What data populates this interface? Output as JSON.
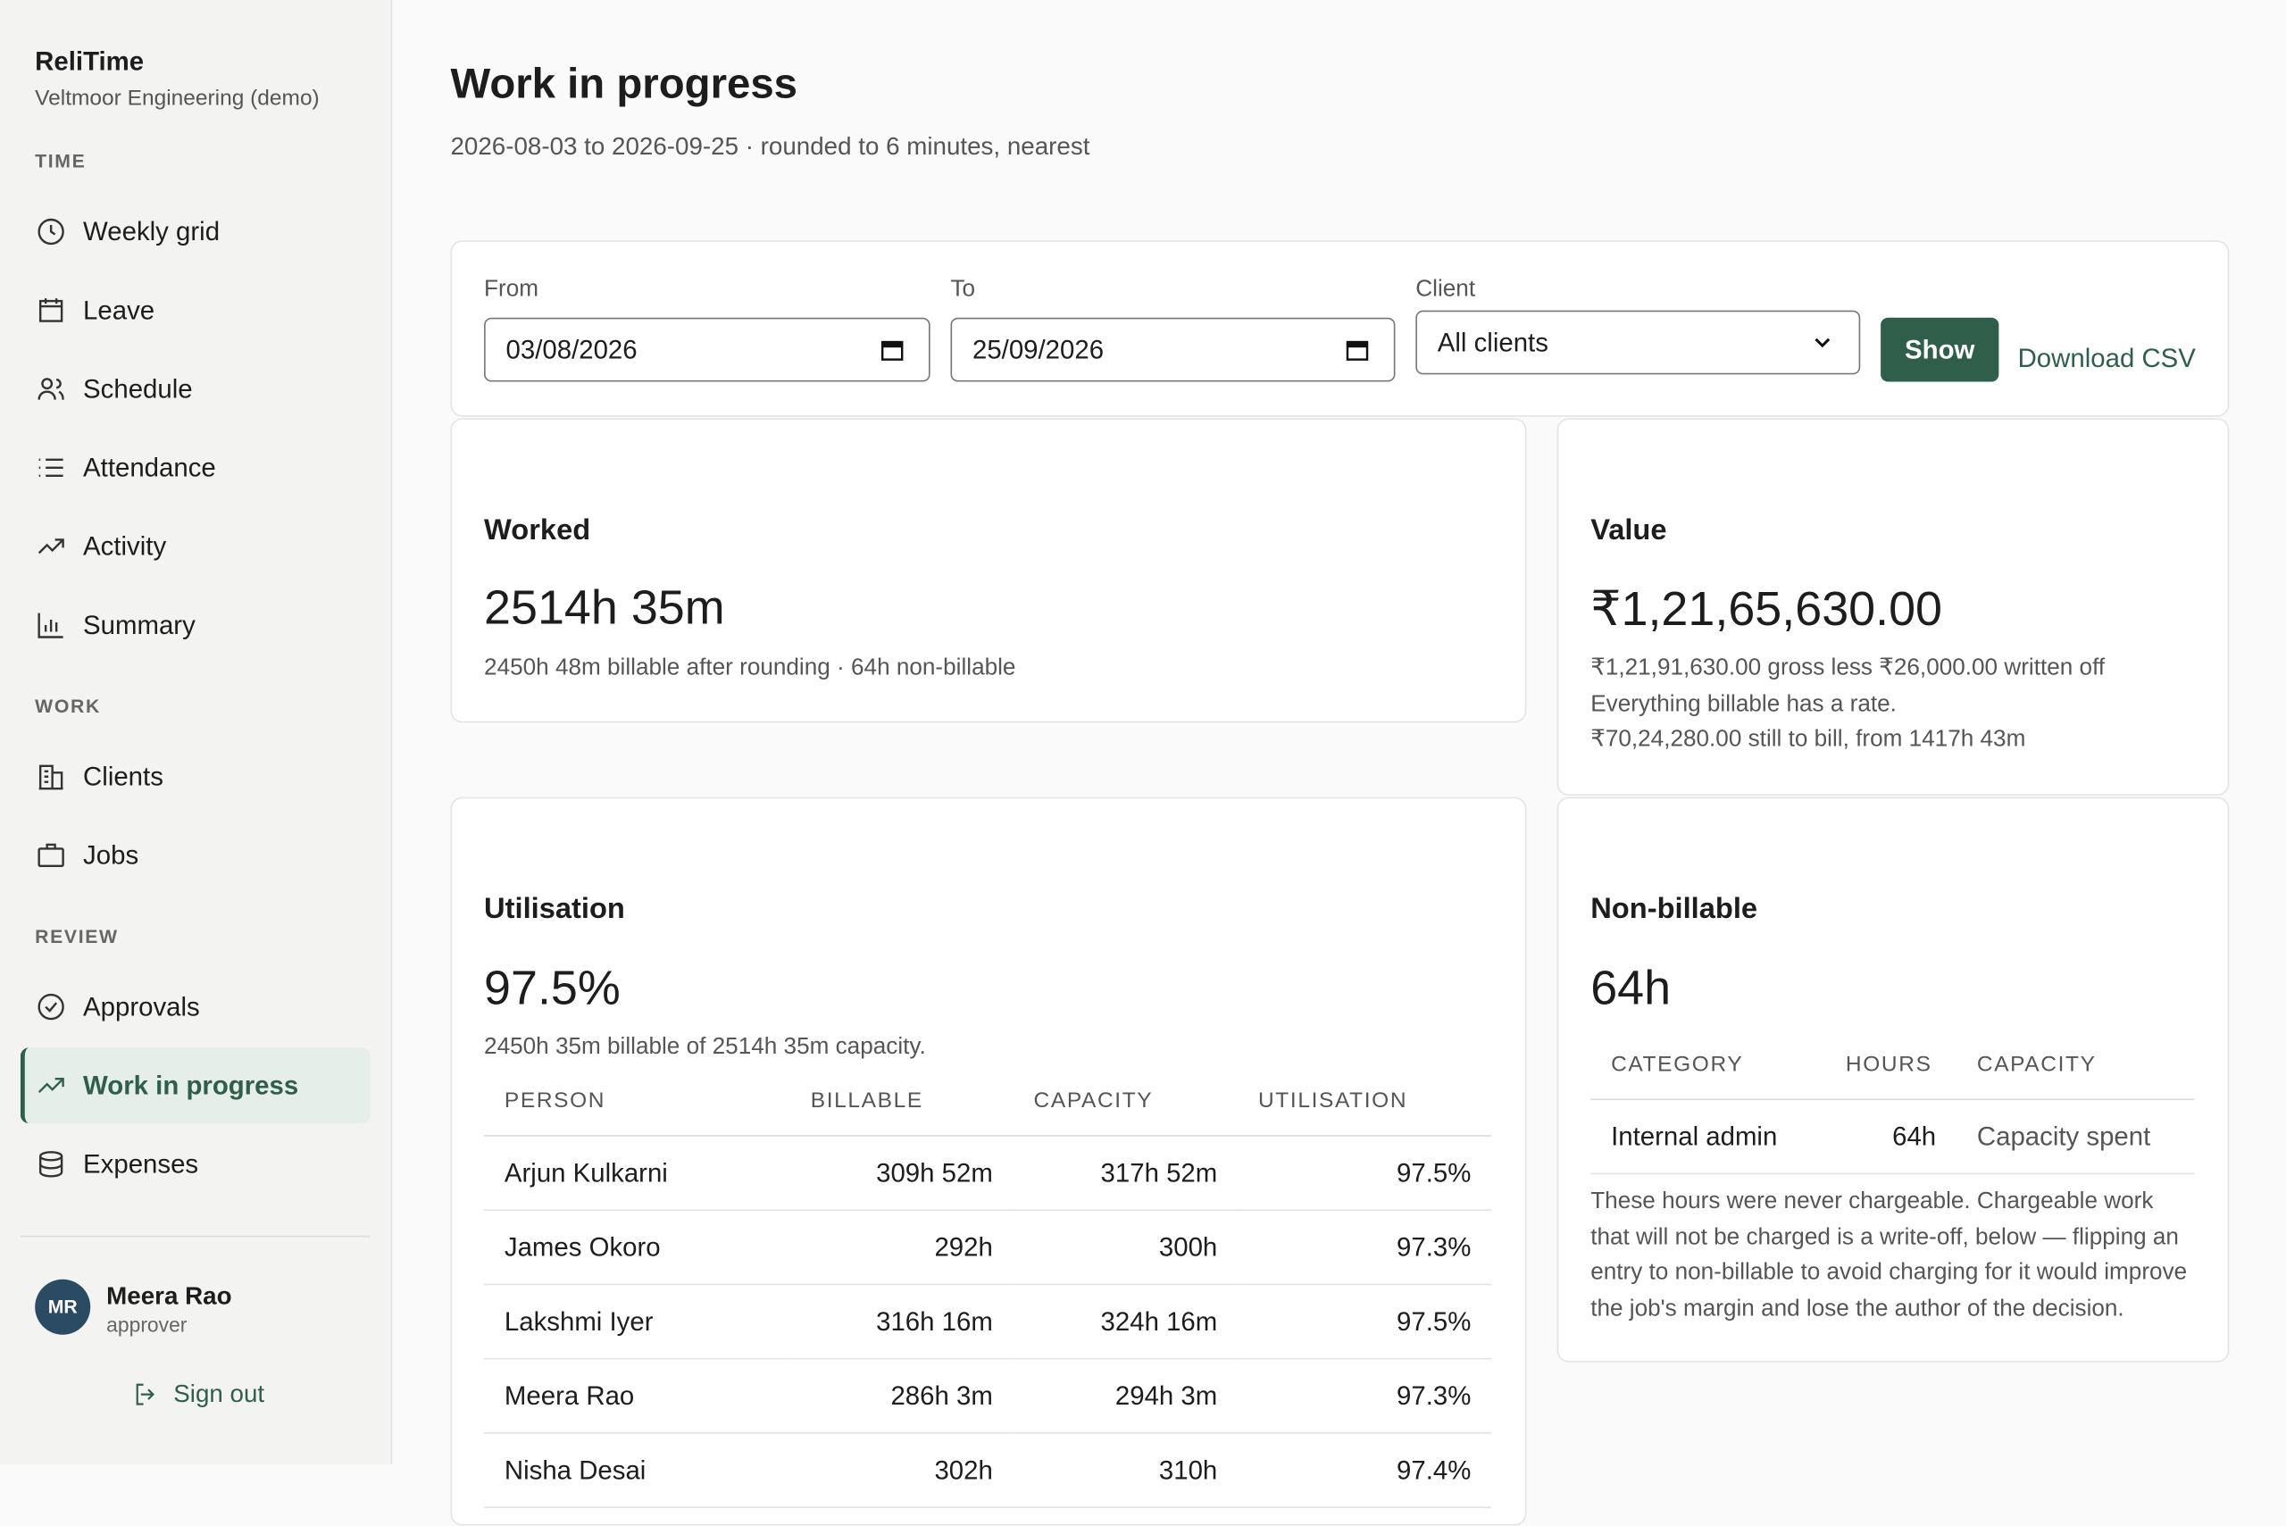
{
  "app": {
    "name": "ReliTime",
    "org": "Veltmoor Engineering (demo)"
  },
  "nav": [
    {
      "section": "TIME",
      "items": [
        "Weekly grid",
        "Leave",
        "Schedule",
        "Attendance",
        "Activity",
        "Summary"
      ]
    },
    {
      "section": "WORK",
      "items": [
        "Clients",
        "Jobs"
      ]
    },
    {
      "section": "REVIEW",
      "items": [
        "Approvals",
        "Work in progress",
        "Expenses"
      ]
    }
  ],
  "user": {
    "initials": "MR",
    "name": "Meera Rao",
    "role": "approver",
    "sign_out": "Sign out"
  },
  "header": {
    "title": "Work in progress",
    "subtitle": "2026-08-03 to 2026-09-25 · rounded to 6 minutes, nearest"
  },
  "filters": {
    "from_label": "From",
    "from": "03/08/2026",
    "to_label": "To",
    "to": "25/09/2026",
    "client_label": "Client",
    "client": "All clients",
    "show": "Show",
    "download": "Download CSV"
  },
  "worked": {
    "title": "Worked",
    "value": "2514h 35m",
    "note": "2450h 48m billable after rounding · 64h non-billable"
  },
  "value": {
    "title": "Value",
    "value": "₹1,21,65,630.00",
    "notes": [
      "₹1,21,91,630.00 gross less ₹26,000.00 written off",
      "Everything billable has a rate.",
      "₹70,24,280.00 still to bill, from 1417h 43m"
    ]
  },
  "utilisation": {
    "title": "Utilisation",
    "value": "97.5%",
    "note": "2450h 35m billable of 2514h 35m capacity.",
    "table": {
      "columns": [
        "PERSON",
        "BILLABLE",
        "CAPACITY",
        "UTILISATION"
      ],
      "rows": [
        [
          "Arjun Kulkarni",
          "309h 52m",
          "317h 52m",
          "97.5%"
        ],
        [
          "James Okoro",
          "292h",
          "300h",
          "97.3%"
        ],
        [
          "Lakshmi Iyer",
          "316h 16m",
          "324h 16m",
          "97.5%"
        ],
        [
          "Meera Rao",
          "286h 3m",
          "294h 3m",
          "97.3%"
        ],
        [
          "Nisha Desai",
          "302h",
          "310h",
          "97.4%"
        ]
      ]
    }
  },
  "non_billable": {
    "title": "Non-billable",
    "value": "64h",
    "table": {
      "columns": [
        "CATEGORY",
        "HOURS",
        "CAPACITY"
      ],
      "rows": [
        [
          "Internal admin",
          "64h",
          "Capacity spent"
        ]
      ]
    },
    "note": "These hours were never chargeable. Chargeable work that will not be charged is a write-off, below — flipping an entry to non-billable to avoid charging for it would improve the job's margin and lose the author of the decision."
  }
}
